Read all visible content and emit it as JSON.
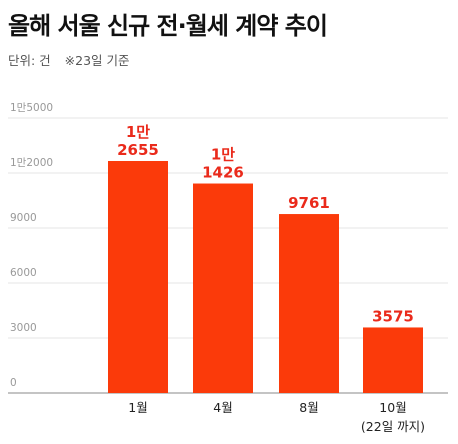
{
  "title": "올해 서울 신규 전·월세 계약 추이",
  "unit_label": "단위: 건",
  "note": "※23일 기준",
  "colors": {
    "bar": "#fb3a0a",
    "label": "#ea2a1b",
    "grid": "#e6e6e6",
    "axis": "#888888"
  },
  "chart_data": {
    "type": "bar",
    "title": "올해 서울 신규 전·월세 계약 추이",
    "xlabel": "",
    "ylabel": "",
    "ylim": [
      0,
      15000
    ],
    "grid": true,
    "yticks": [
      {
        "value": 0,
        "label": "0"
      },
      {
        "value": 3000,
        "label": "3000"
      },
      {
        "value": 6000,
        "label": "6000"
      },
      {
        "value": 9000,
        "label": "9000"
      },
      {
        "value": 12000,
        "label": "1만2000"
      },
      {
        "value": 15000,
        "label": "1만5000"
      }
    ],
    "categories": [
      {
        "label": "1월",
        "sublabel": ""
      },
      {
        "label": "4월",
        "sublabel": ""
      },
      {
        "label": "8월",
        "sublabel": ""
      },
      {
        "label": "10월",
        "sublabel": "(22일 까지)"
      }
    ],
    "values": [
      12655,
      11426,
      9761,
      3575
    ],
    "data_labels": [
      {
        "top": "1만",
        "bottom": "2655"
      },
      {
        "top": "1만",
        "bottom": "1426"
      },
      {
        "top": "",
        "bottom": "9761"
      },
      {
        "top": "",
        "bottom": "3575"
      }
    ]
  }
}
